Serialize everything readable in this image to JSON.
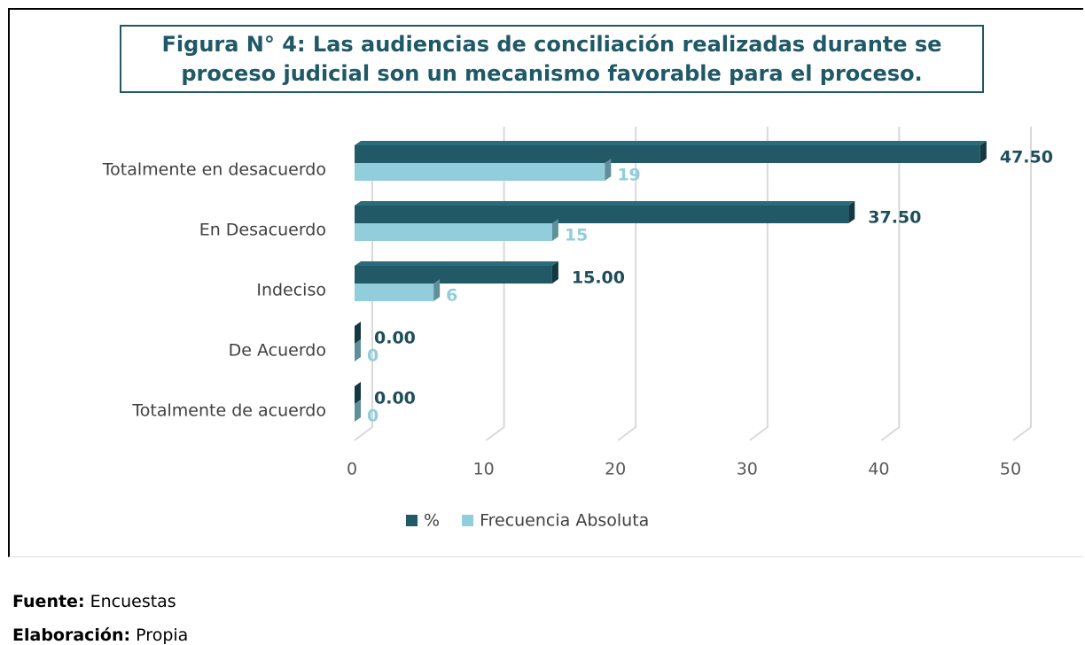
{
  "chart_data": {
    "type": "bar",
    "title": "Figura N° 4: Las audiencias de conciliación realizadas durante se proceso judicial son un mecanismo favorable para el proceso.",
    "orientation": "horizontal",
    "categories": [
      "Totalmente en desacuerdo",
      "En Desacuerdo",
      "Indeciso",
      "De Acuerdo",
      "Totalmente de acuerdo"
    ],
    "series": [
      {
        "name": "%",
        "color": "#215967",
        "values": [
          47.5,
          37.5,
          15,
          0,
          0
        ],
        "value_labels": [
          "47.50",
          "37.50",
          "15.00",
          "0.00",
          "0.00"
        ]
      },
      {
        "name": "Frecuencia Absoluta",
        "color": "#92cddc",
        "values": [
          19,
          15,
          6,
          0,
          0
        ]
      }
    ],
    "xlim": [
      0,
      50
    ],
    "xticks": [
      0,
      10,
      20,
      30,
      40,
      50
    ],
    "grid": true,
    "legend": "bottom"
  },
  "footer": {
    "source_label": "Fuente:",
    "source": "Encuestas",
    "author_label": "Elaboración:",
    "author": "Propia"
  }
}
